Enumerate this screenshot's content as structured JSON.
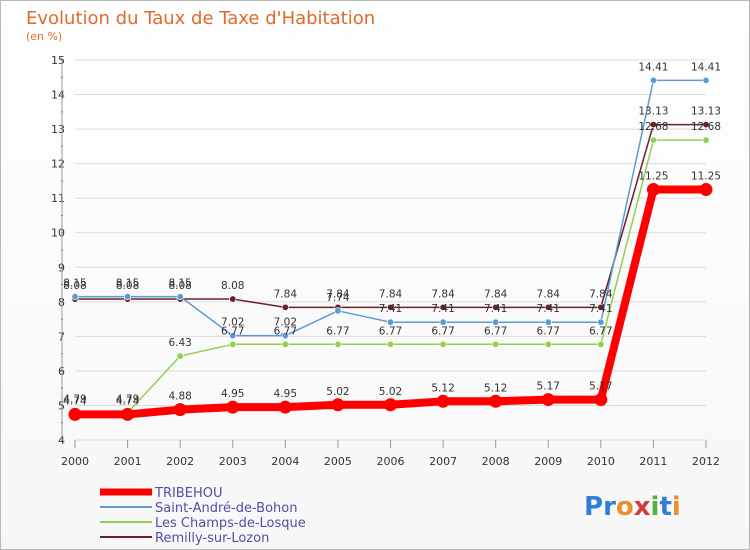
{
  "chart_data": {
    "type": "line",
    "title": "Evolution du Taux de Taxe d'Habitation",
    "subtitle": "(en %)",
    "x": [
      "2000",
      "2001",
      "2002",
      "2003",
      "2004",
      "2005",
      "2006",
      "2007",
      "2008",
      "2009",
      "2010",
      "2011",
      "2012"
    ],
    "ylim": [
      4,
      15
    ],
    "yticks": [
      4,
      5,
      6,
      7,
      8,
      9,
      10,
      11,
      12,
      13,
      14,
      15
    ],
    "grid": "horizontal",
    "legend": "bottom-left",
    "series": [
      {
        "name": "Remilly-sur-Lozon",
        "color": "#6b1f2a",
        "values": [
          8.08,
          8.08,
          8.08,
          8.08,
          7.84,
          7.84,
          7.84,
          7.84,
          7.84,
          7.84,
          7.84,
          13.13,
          13.13
        ],
        "labels": [
          "8.08",
          "8.08",
          "8.08",
          "8.08",
          "7.84",
          "7.84",
          "7.84",
          "7.84",
          "7.84",
          "7.84",
          "7.84",
          "13.13",
          "13.13"
        ]
      },
      {
        "name": "Les Champs-de-Losque",
        "color": "#8fd14f",
        "values": [
          4.79,
          4.79,
          6.43,
          6.77,
          6.77,
          6.77,
          6.77,
          6.77,
          6.77,
          6.77,
          6.77,
          12.68,
          12.68
        ],
        "labels": [
          "4.79",
          "4.79",
          "6.43",
          "6.77",
          "6.77",
          "6.77",
          "6.77",
          "6.77",
          "6.77",
          "6.77",
          "6.77",
          "12.68",
          "12.68"
        ]
      },
      {
        "name": "Saint-André-de-Bohon",
        "color": "#5b9bd5",
        "values": [
          8.15,
          8.15,
          8.15,
          7.02,
          7.02,
          7.74,
          7.41,
          7.41,
          7.41,
          7.41,
          7.41,
          14.41,
          14.41
        ],
        "labels": [
          "8.15",
          "8.15",
          "8.15",
          "7.02",
          "7.02",
          "7.74",
          "7.41",
          "7.41",
          "7.41",
          "7.41",
          "7.41",
          "14.41",
          "14.41"
        ]
      },
      {
        "name": "TRIBEHOU",
        "color": "#ff0000",
        "values": [
          4.74,
          4.74,
          4.88,
          4.95,
          4.95,
          5.02,
          5.02,
          5.12,
          5.12,
          5.17,
          5.17,
          11.25,
          11.25
        ],
        "labels": [
          "4.74",
          "4.74",
          "4.88",
          "4.95",
          "4.95",
          "5.02",
          "5.02",
          "5.12",
          "5.12",
          "5.17",
          "5.17",
          "11.25",
          "11.25"
        ]
      }
    ],
    "legend_order": [
      "TRIBEHOU",
      "Saint-André-de-Bohon",
      "Les Champs-de-Losque",
      "Remilly-sur-Lozon"
    ]
  },
  "brand": {
    "text": "Proxiti",
    "letters": [
      "P",
      "r",
      "o",
      "x",
      "i",
      "t",
      "i"
    ],
    "colors": [
      "#2f7fd6",
      "#2f7fd6",
      "#e8902a",
      "#d63a3a",
      "#5ab03c",
      "#2f7fd6",
      "#e8902a"
    ]
  }
}
